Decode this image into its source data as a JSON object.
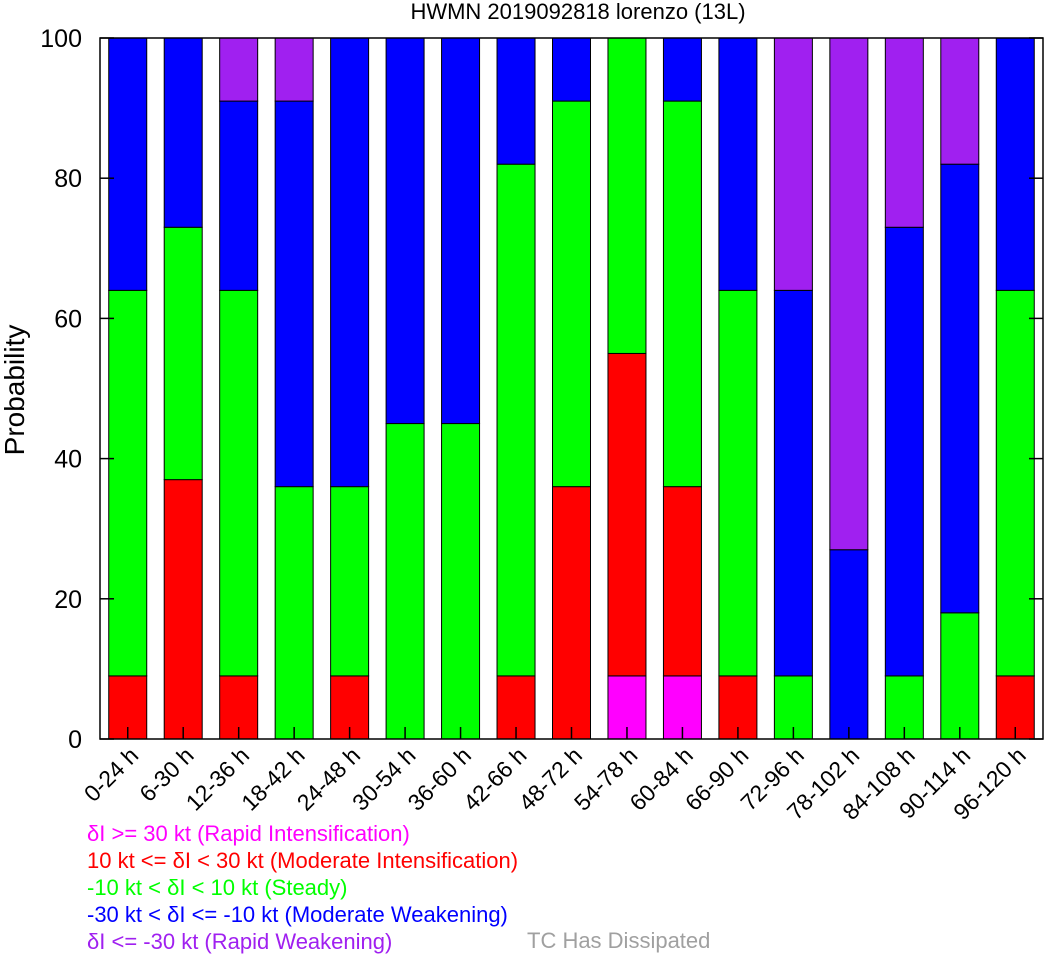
{
  "chart_data": {
    "type": "bar",
    "stacked": true,
    "title": "HWMN 2019092818 lorenzo (13L)",
    "ylabel": "Probability",
    "xlabel": "",
    "ylim": [
      0,
      100
    ],
    "yticks": [
      "0",
      "20",
      "40",
      "60",
      "80",
      "100"
    ],
    "grid": false,
    "categories": [
      "0-24 h",
      "6-30 h",
      "12-36 h",
      "18-42 h",
      "24-48 h",
      "30-54 h",
      "36-60 h",
      "42-66 h",
      "48-72 h",
      "54-78 h",
      "60-84 h",
      "66-90 h",
      "72-96 h",
      "78-102 h",
      "84-108 h",
      "90-114 h",
      "96-120 h"
    ],
    "series": [
      {
        "name": "δI >= 30 kt (Rapid Intensification)",
        "color": "#ff00ff",
        "values": [
          0,
          0,
          0,
          0,
          0,
          0,
          0,
          0,
          0,
          9,
          9,
          0,
          0,
          0,
          0,
          0,
          0
        ]
      },
      {
        "name": "10 kt <= δI < 30 kt (Moderate Intensification)",
        "color": "#ff0000",
        "values": [
          9,
          37,
          9,
          0,
          9,
          0,
          0,
          9,
          36,
          46,
          27,
          9,
          0,
          0,
          0,
          0,
          9
        ]
      },
      {
        "name": "-10 kt < δI < 10 kt (Steady)",
        "color": "#00ff00",
        "values": [
          55,
          36,
          55,
          36,
          27,
          45,
          45,
          73,
          55,
          45,
          55,
          55,
          9,
          0,
          9,
          18,
          55
        ]
      },
      {
        "name": "-30 kt < δI <= -10 kt (Moderate Weakening)",
        "color": "#0000ff",
        "values": [
          36,
          27,
          27,
          55,
          64,
          55,
          55,
          18,
          9,
          0,
          9,
          36,
          55,
          27,
          64,
          64,
          36
        ]
      },
      {
        "name": "δI <= -30 kt (Rapid Weakening)",
        "color": "#a020f0",
        "values": [
          0,
          0,
          9,
          9,
          0,
          0,
          0,
          0,
          0,
          0,
          0,
          0,
          36,
          73,
          27,
          18,
          0
        ]
      }
    ],
    "extra_legend": {
      "label": "TC Has Dissipated",
      "color": "#a0a0a0"
    }
  }
}
